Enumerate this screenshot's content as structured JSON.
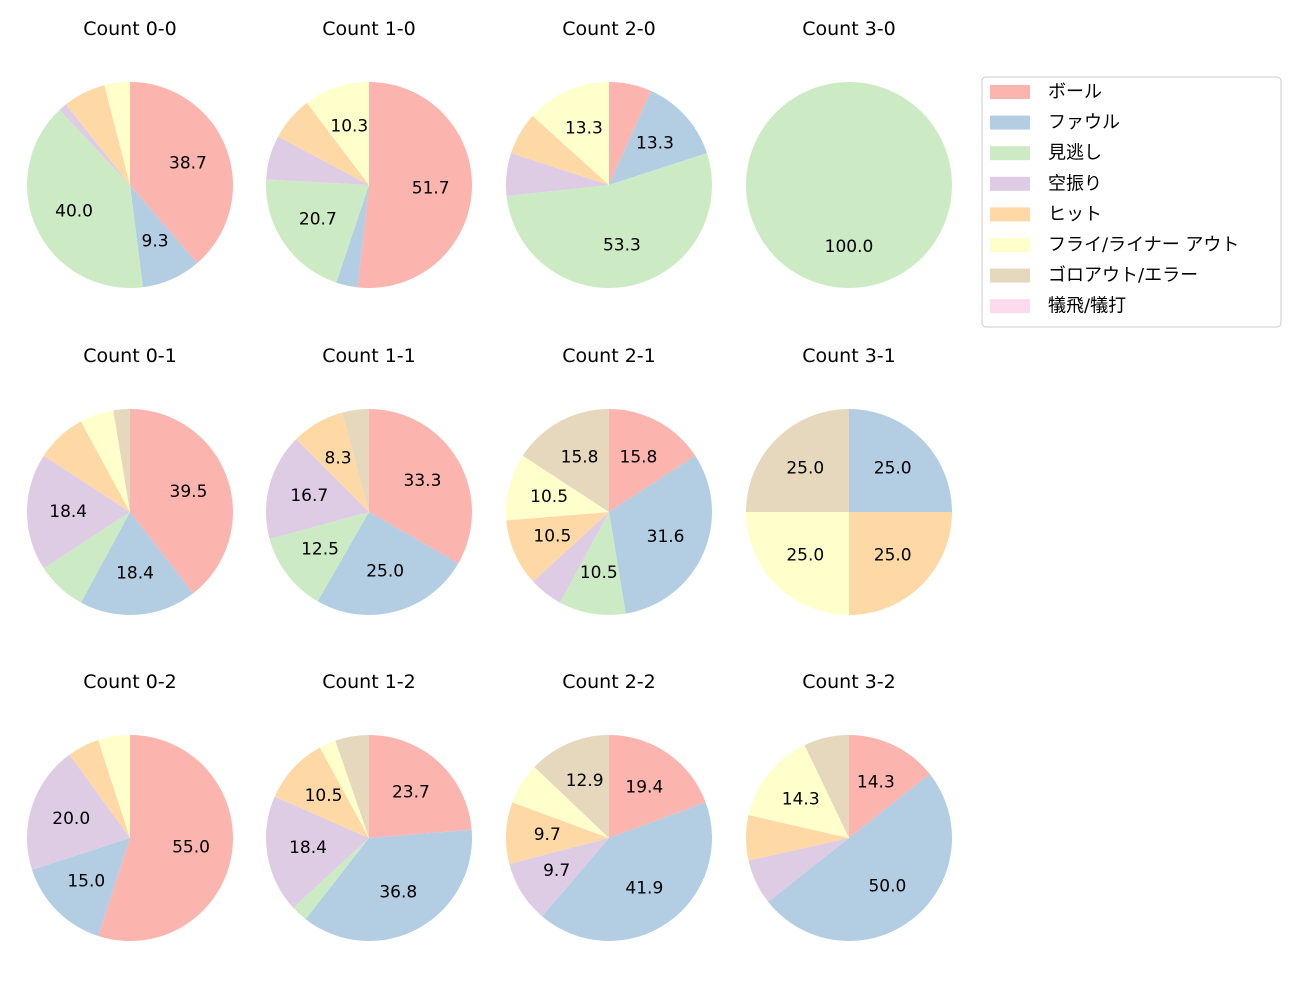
{
  "chart_data": {
    "type": "pie",
    "legend_position": "top-right",
    "categories": [
      "ボール",
      "ファウル",
      "見逃し",
      "空振り",
      "ヒット",
      "フライ/ライナー アウト",
      "ゴロアウト/エラー",
      "犠飛/犠打"
    ],
    "colors": [
      "#fbb4ae",
      "#b3cde3",
      "#ccebc5",
      "#decbe4",
      "#fed9a6",
      "#ffffcc",
      "#e5d8bd",
      "#fddaec"
    ],
    "pies": [
      {
        "title": "Count 0-0",
        "values": [
          38.7,
          9.3,
          40.0,
          1.3,
          6.7,
          4.0,
          0,
          0
        ]
      },
      {
        "title": "Count 1-0",
        "values": [
          51.7,
          3.4,
          20.7,
          6.9,
          6.9,
          10.3,
          0,
          0
        ]
      },
      {
        "title": "Count 2-0",
        "values": [
          6.7,
          13.3,
          53.3,
          6.7,
          6.7,
          13.3,
          0,
          0
        ]
      },
      {
        "title": "Count 3-0",
        "values": [
          0,
          0,
          100.0,
          0,
          0,
          0,
          0,
          0
        ]
      },
      {
        "title": "Count 0-1",
        "values": [
          39.5,
          18.4,
          7.9,
          18.4,
          7.9,
          5.3,
          2.6,
          0
        ]
      },
      {
        "title": "Count 1-1",
        "values": [
          33.3,
          25.0,
          12.5,
          16.7,
          8.3,
          0,
          4.2,
          0
        ]
      },
      {
        "title": "Count 2-1",
        "values": [
          15.8,
          31.6,
          10.5,
          5.3,
          10.5,
          10.5,
          15.8,
          0
        ]
      },
      {
        "title": "Count 3-1",
        "values": [
          0,
          25.0,
          0,
          0,
          25.0,
          25.0,
          25.0,
          0
        ]
      },
      {
        "title": "Count 0-2",
        "values": [
          55.0,
          15.0,
          0,
          20.0,
          5.0,
          5.0,
          0,
          0
        ]
      },
      {
        "title": "Count 1-2",
        "values": [
          23.7,
          36.8,
          2.6,
          18.4,
          10.5,
          2.6,
          5.3,
          0
        ]
      },
      {
        "title": "Count 2-2",
        "values": [
          19.4,
          41.9,
          0,
          9.7,
          9.7,
          6.5,
          12.9,
          0
        ]
      },
      {
        "title": "Count 3-2",
        "values": [
          14.3,
          50.0,
          0,
          7.1,
          7.1,
          14.3,
          7.1,
          0
        ]
      }
    ]
  }
}
